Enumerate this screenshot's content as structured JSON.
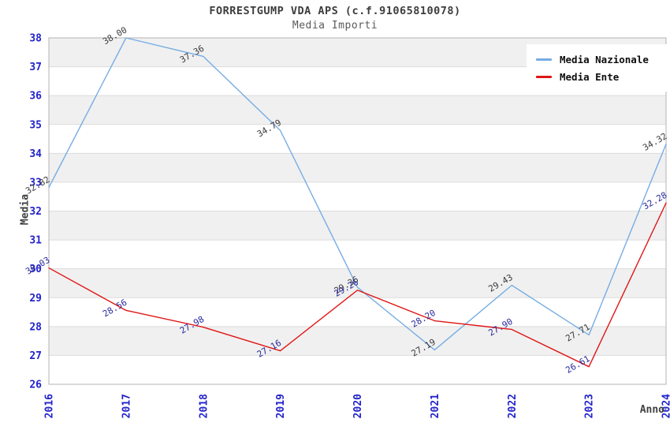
{
  "title": "FORRESTGUMP VDA APS (c.f.91065810078)",
  "subtitle": "Media Importi",
  "colors": {
    "nazionale_line": "#76ade4",
    "ente_line": "#e01515",
    "nazionale_label": "#3c3c3c",
    "ente_label": "#2a2a9e",
    "tick_text": "#2222cc",
    "band_fill": "#f0f0f0",
    "gridline": "#dcdcdc",
    "frame": "#b3b3b3"
  },
  "chart_data": {
    "type": "line",
    "title": "FORRESTGUMP VDA APS (c.f.91065810078)",
    "subtitle": "Media Importi",
    "xlabel": "Anno",
    "ylabel": "Media",
    "x": [
      2016,
      2017,
      2018,
      2019,
      2020,
      2021,
      2022,
      2023,
      2024
    ],
    "xticks": [
      "2016",
      "2017",
      "2018",
      "2019",
      "2020",
      "2021",
      "2022",
      "2023",
      "2024"
    ],
    "ylim": [
      26,
      38
    ],
    "yticks": [
      26,
      27,
      28,
      29,
      30,
      31,
      32,
      33,
      34,
      35,
      36,
      37,
      38
    ],
    "grid": "horizontal alternating bands, light gridlines at each integer",
    "legend_position": "top-right inside plot",
    "series": [
      {
        "name": "Media Nazionale",
        "color": "#76ade4",
        "label_color": "#3c3c3c",
        "values": [
          32.82,
          38.0,
          37.36,
          34.79,
          29.36,
          27.19,
          29.43,
          27.71,
          34.32
        ]
      },
      {
        "name": "Media Ente",
        "color": "#e01515",
        "label_color": "#2a2a9e",
        "values": [
          30.03,
          28.56,
          27.98,
          27.16,
          29.26,
          28.2,
          27.9,
          26.61,
          32.28
        ]
      }
    ]
  }
}
